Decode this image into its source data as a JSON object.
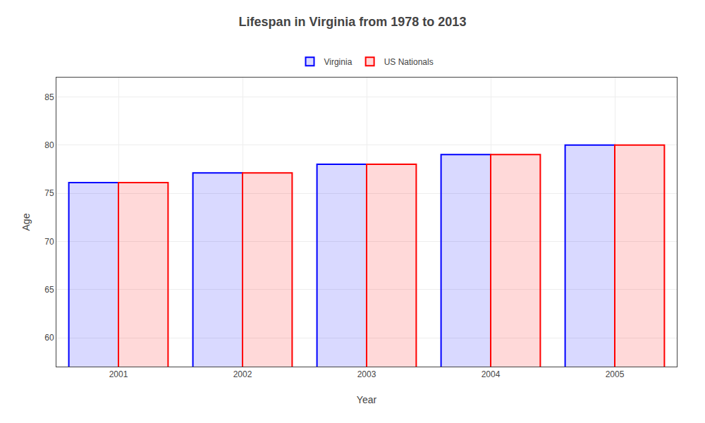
{
  "chart_data": {
    "type": "bar",
    "title": "Lifespan in Virginia from 1978 to 2013",
    "xlabel": "Year",
    "ylabel": "Age",
    "categories": [
      "2001",
      "2002",
      "2003",
      "2004",
      "2005"
    ],
    "series": [
      {
        "name": "Virginia",
        "color": "#0000ff",
        "values": [
          76.1,
          77.1,
          78.0,
          79.0,
          80.0
        ]
      },
      {
        "name": "US Nationals",
        "color": "#ff0000",
        "values": [
          76.1,
          77.1,
          78.0,
          79.0,
          80.0
        ]
      }
    ],
    "ylim": [
      57,
      87
    ],
    "yticks": [
      60,
      65,
      70,
      75,
      80,
      85
    ],
    "grid": true,
    "legend": "top"
  }
}
